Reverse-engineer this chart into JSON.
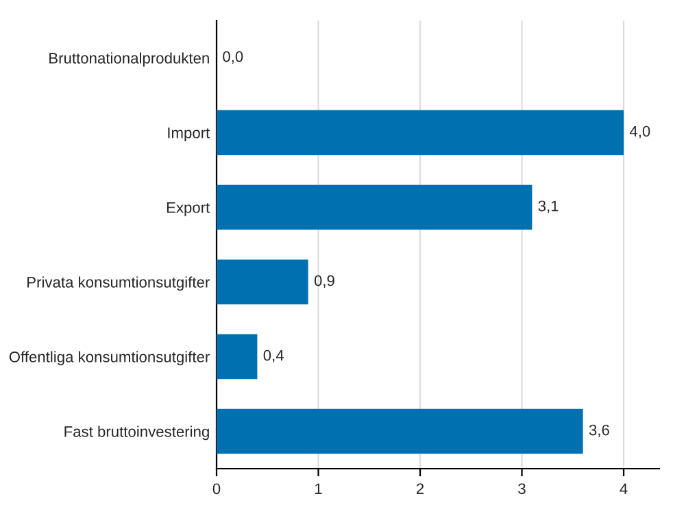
{
  "chart_data": {
    "type": "bar",
    "orientation": "horizontal",
    "categories": [
      "Bruttonationalprodukten",
      "Import",
      "Export",
      "Privata konsumtionsutgifter",
      "Offentliga konsumtionsutgifter",
      "Fast bruttoinvestering"
    ],
    "values": [
      0.0,
      4.0,
      3.1,
      0.9,
      0.4,
      3.6
    ],
    "value_labels": [
      "0,0",
      "4,0",
      "3,1",
      "0,9",
      "0,4",
      "3,6"
    ],
    "color": "#0070b0",
    "xlim": [
      0,
      4.35
    ],
    "xticks": [
      0,
      1,
      2,
      3,
      4
    ],
    "grid": "x",
    "legend": false
  }
}
